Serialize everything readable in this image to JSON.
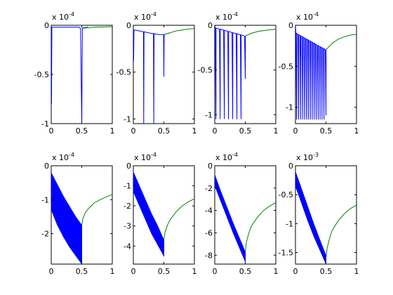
{
  "colors": {
    "blue": "#0000ff",
    "green": "#008000",
    "axes": "#000000",
    "background": "#ffffff"
  },
  "chart_data": [
    {
      "type": "line",
      "scale_text": "x 10",
      "scale_exp": "-4",
      "xlim": [
        0,
        1
      ],
      "ylim": [
        -1.0,
        0
      ],
      "xticks": [
        0,
        0.5,
        1
      ],
      "xtick_labels": [
        "0",
        "0.5",
        "1"
      ],
      "yticks": [
        0,
        -0.5,
        -1
      ],
      "ytick_labels": [
        "0",
        "-0.5",
        "-1"
      ],
      "grid": false,
      "series": [
        {
          "color": "#0000ff",
          "x": [
            0,
            0.005,
            0.01,
            0.03,
            0.1,
            0.2,
            0.3,
            0.4,
            0.45,
            0.48,
            0.5,
            0.51,
            0.52,
            0.6
          ],
          "y": [
            0,
            -0.8,
            -0.02,
            -0.02,
            -0.02,
            -0.02,
            -0.02,
            -0.02,
            -0.02,
            -0.03,
            -1.0,
            -0.03,
            -0.025,
            -0.02
          ]
        },
        {
          "color": "#008000",
          "x": [
            0.5,
            0.6,
            0.7,
            0.8,
            0.9,
            1.0
          ],
          "y": [
            -0.03,
            -0.025,
            -0.02,
            -0.018,
            -0.016,
            -0.014
          ]
        }
      ]
    },
    {
      "type": "line",
      "scale_text": "x 10",
      "scale_exp": "-4",
      "xlim": [
        0,
        1
      ],
      "ylim": [
        -1.05,
        0
      ],
      "xticks": [
        0,
        0.5,
        1
      ],
      "xtick_labels": [
        "0",
        "0.5",
        "1"
      ],
      "yticks": [
        0,
        -0.5,
        -1
      ],
      "ytick_labels": [
        "0",
        "-0.5",
        "-1"
      ],
      "grid": false,
      "series": [
        {
          "color": "#0000ff",
          "x": [
            0,
            0.005,
            0.01,
            0.1,
            0.165,
            0.17,
            0.175,
            0.25,
            0.33,
            0.335,
            0.34,
            0.42,
            0.495,
            0.5,
            0.505,
            0.6
          ],
          "y": [
            0,
            -0.38,
            -0.05,
            -0.06,
            -0.07,
            -1.05,
            -0.07,
            -0.08,
            -0.09,
            -1.05,
            -0.09,
            -0.1,
            -0.1,
            -0.55,
            -0.1,
            -0.08
          ]
        },
        {
          "color": "#008000",
          "x": [
            0.5,
            0.6,
            0.7,
            0.8,
            0.9,
            1.0
          ],
          "y": [
            -0.1,
            -0.08,
            -0.06,
            -0.05,
            -0.04,
            -0.035
          ]
        }
      ]
    },
    {
      "type": "line",
      "scale_text": "x 10",
      "scale_exp": "-4",
      "xlim": [
        0,
        1
      ],
      "ylim": [
        -1.1,
        0
      ],
      "xticks": [
        0,
        0.5,
        1
      ],
      "xtick_labels": [
        "0",
        "0.5",
        "1"
      ],
      "yticks": [
        0,
        -0.5,
        -1
      ],
      "ytick_labels": [
        "0",
        "-0.5",
        "-1"
      ],
      "grid": false,
      "spikes": {
        "color": "#0000ff",
        "x0": 0.02,
        "x1": 0.5,
        "count": 8,
        "base_start": -0.03,
        "base_end": -0.12,
        "depth": -1.05,
        "final_depth": -0.6
      },
      "series": [
        {
          "color": "#008000",
          "x": [
            0.5,
            0.6,
            0.7,
            0.8,
            0.9,
            1.0
          ],
          "y": [
            -0.12,
            -0.09,
            -0.07,
            -0.06,
            -0.05,
            -0.045
          ]
        }
      ]
    },
    {
      "type": "line",
      "scale_text": "x 10",
      "scale_exp": "-4",
      "xlim": [
        0,
        1
      ],
      "ylim": [
        -1.2,
        0
      ],
      "xticks": [
        0,
        0.5,
        1
      ],
      "xtick_labels": [
        "0",
        "0.5",
        "1"
      ],
      "yticks": [
        0,
        -0.5,
        -1
      ],
      "ytick_labels": [
        "0",
        "-0.5",
        "-1"
      ],
      "grid": false,
      "spikes": {
        "color": "#0000ff",
        "x0": 0.02,
        "x1": 0.5,
        "count": 16,
        "base_start": -0.1,
        "base_end": -0.3,
        "depth": -1.15,
        "final_depth": -1.1
      },
      "series": [
        {
          "color": "#008000",
          "x": [
            0.5,
            0.6,
            0.7,
            0.8,
            0.9,
            1.0
          ],
          "y": [
            -0.3,
            -0.22,
            -0.17,
            -0.14,
            -0.12,
            -0.11
          ]
        }
      ]
    },
    {
      "type": "area",
      "scale_text": "x 10",
      "scale_exp": "-4",
      "xlim": [
        0,
        1
      ],
      "ylim": [
        -2.9,
        0
      ],
      "xticks": [
        0,
        0.5,
        1
      ],
      "xtick_labels": [
        "0",
        "0.5",
        "1"
      ],
      "yticks": [
        0,
        -1,
        -2
      ],
      "ytick_labels": [
        "0",
        "-1",
        "-2"
      ],
      "grid": false,
      "band": {
        "color": "#0000ff",
        "x": [
          0,
          0.1,
          0.2,
          0.3,
          0.4,
          0.5
        ],
        "upper": [
          -0.2,
          -0.55,
          -0.9,
          -1.2,
          -1.5,
          -1.75
        ],
        "lower": [
          -1.3,
          -1.75,
          -2.1,
          -2.4,
          -2.65,
          -2.9
        ]
      },
      "series": [
        {
          "color": "#008000",
          "x": [
            0.5,
            0.52,
            0.56,
            0.6,
            0.7,
            0.8,
            0.9,
            1.0
          ],
          "y": [
            -1.75,
            -1.55,
            -1.38,
            -1.28,
            -1.1,
            -1.0,
            -0.92,
            -0.85
          ]
        }
      ]
    },
    {
      "type": "area",
      "scale_text": "x 10",
      "scale_exp": "-4",
      "xlim": [
        0,
        1
      ],
      "ylim": [
        -4.9,
        0
      ],
      "xticks": [
        0,
        0.5,
        1
      ],
      "xtick_labels": [
        "0",
        "0.5",
        "1"
      ],
      "yticks": [
        0,
        -1,
        -2,
        -3,
        -4
      ],
      "ytick_labels": [
        "0",
        "-1",
        "-2",
        "-3",
        "-4"
      ],
      "grid": false,
      "band": {
        "color": "#0000ff",
        "x": [
          0,
          0.1,
          0.2,
          0.3,
          0.4,
          0.5
        ],
        "upper": [
          -0.3,
          -1.0,
          -1.7,
          -2.4,
          -3.0,
          -3.7
        ],
        "lower": [
          -1.3,
          -2.0,
          -2.7,
          -3.4,
          -3.95,
          -4.5
        ]
      },
      "series": [
        {
          "color": "#008000",
          "x": [
            0.5,
            0.52,
            0.56,
            0.6,
            0.7,
            0.8,
            0.9,
            1.0
          ],
          "y": [
            -3.7,
            -3.3,
            -2.95,
            -2.7,
            -2.3,
            -2.0,
            -1.8,
            -1.65
          ]
        }
      ]
    },
    {
      "type": "area",
      "scale_text": "x 10",
      "scale_exp": "-4",
      "xlim": [
        0,
        1
      ],
      "ylim": [
        -8.8,
        0
      ],
      "xticks": [
        0,
        0.5,
        1
      ],
      "xtick_labels": [
        "0",
        "0.5",
        "1"
      ],
      "yticks": [
        0,
        -2,
        -4,
        -6,
        -8
      ],
      "ytick_labels": [
        "0",
        "-2",
        "-4",
        "-6",
        "-8"
      ],
      "grid": false,
      "band": {
        "color": "#0000ff",
        "x": [
          0,
          0.1,
          0.2,
          0.3,
          0.4,
          0.5
        ],
        "upper": [
          -0.8,
          -2.3,
          -3.7,
          -5.1,
          -6.4,
          -7.7
        ],
        "lower": [
          -1.8,
          -3.2,
          -4.6,
          -6.0,
          -7.3,
          -8.6
        ]
      },
      "series": [
        {
          "color": "#008000",
          "x": [
            0.5,
            0.52,
            0.56,
            0.6,
            0.7,
            0.8,
            0.9,
            1.0
          ],
          "y": [
            -7.7,
            -6.8,
            -6.0,
            -5.4,
            -4.6,
            -4.0,
            -3.6,
            -3.3
          ]
        }
      ]
    },
    {
      "type": "area",
      "scale_text": "x 10",
      "scale_exp": "-3",
      "xlim": [
        0,
        1
      ],
      "ylim": [
        -1.7,
        0
      ],
      "xticks": [
        0,
        0.5,
        1
      ],
      "xtick_labels": [
        "0",
        "0.5",
        "1"
      ],
      "yticks": [
        0,
        -0.5,
        -1,
        -1.5
      ],
      "ytick_labels": [
        "0",
        "-0.5",
        "-1",
        "-1.5"
      ],
      "grid": false,
      "band": {
        "color": "#0000ff",
        "x": [
          0,
          0.1,
          0.2,
          0.3,
          0.4,
          0.5
        ],
        "upper": [
          -0.1,
          -0.4,
          -0.7,
          -1.0,
          -1.28,
          -1.55
        ],
        "lower": [
          -0.35,
          -0.65,
          -0.95,
          -1.22,
          -1.46,
          -1.7
        ]
      },
      "series": [
        {
          "color": "#008000",
          "x": [
            0.5,
            0.52,
            0.56,
            0.6,
            0.7,
            0.8,
            0.9,
            1.0
          ],
          "y": [
            -1.6,
            -1.42,
            -1.25,
            -1.12,
            -0.95,
            -0.83,
            -0.74,
            -0.68
          ]
        }
      ]
    }
  ]
}
